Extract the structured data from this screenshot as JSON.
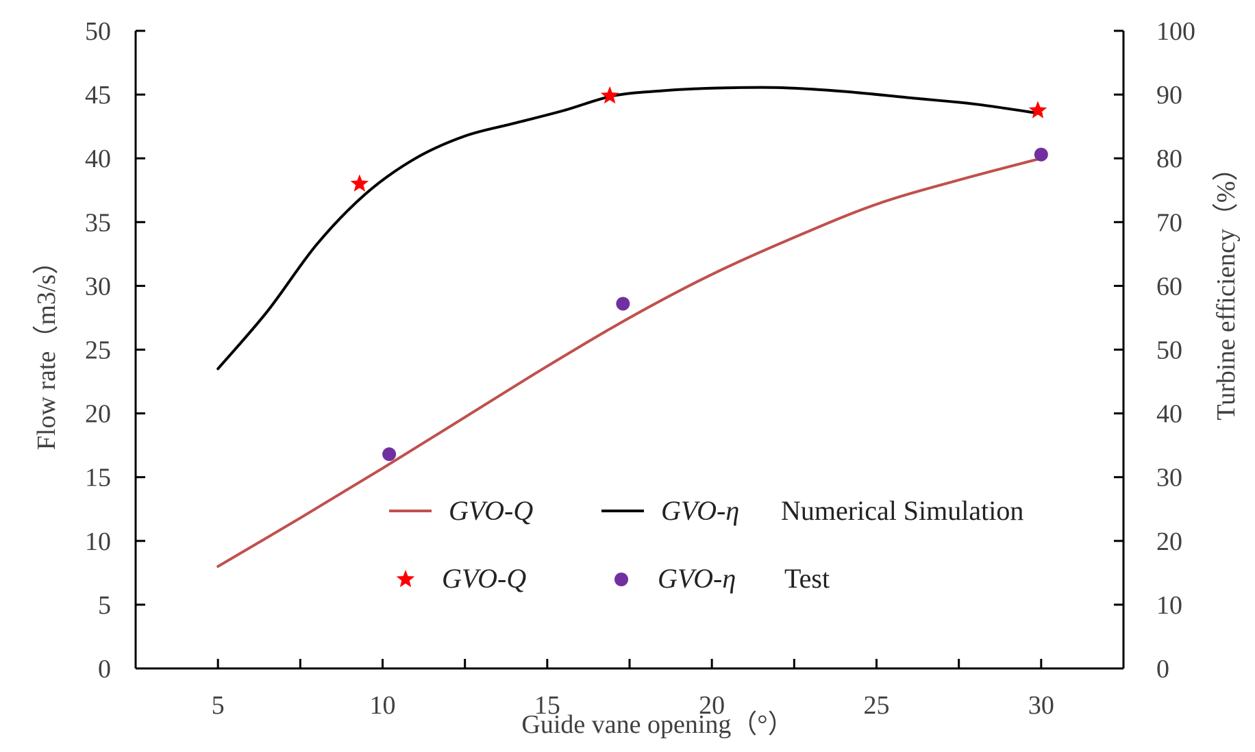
{
  "chart_data": {
    "type": "line",
    "title": "",
    "xlabel": "Guide vane opening（°）",
    "ylabel_left": "Flow rate（m3/s）",
    "ylabel_right": "Turbine efficiency（%）",
    "xlim": [
      2.5,
      32.5
    ],
    "ylim_left": [
      0,
      50
    ],
    "ylim_right": [
      0,
      100
    ],
    "x_ticks": [
      5,
      10,
      15,
      20,
      25,
      30
    ],
    "y_ticks_left": [
      0,
      5,
      10,
      15,
      20,
      25,
      30,
      35,
      40,
      45,
      50
    ],
    "y_ticks_right": [
      0,
      10,
      20,
      30,
      40,
      50,
      60,
      70,
      80,
      90,
      100
    ],
    "grid": false,
    "series": [
      {
        "name": "GVO-Q Numerical Simulation",
        "kind": "line",
        "axis": "left",
        "color": "#c0504d",
        "x": [
          5,
          7.5,
          10,
          12.5,
          15,
          17.5,
          20,
          22.5,
          25,
          27.5,
          30
        ],
        "values": [
          8.0,
          11.8,
          15.7,
          19.7,
          23.7,
          27.5,
          30.9,
          33.8,
          36.4,
          38.3,
          40.0
        ]
      },
      {
        "name": "GVO-η Numerical Simulation",
        "kind": "line",
        "axis": "right",
        "color": "#000000",
        "x": [
          5,
          6.5,
          8,
          9.5,
          11,
          12.5,
          14,
          15.5,
          17,
          18.5,
          20,
          22,
          24,
          26,
          28,
          30
        ],
        "values": [
          47.0,
          56.0,
          66.5,
          74.5,
          80.0,
          83.5,
          85.5,
          87.5,
          89.8,
          90.6,
          91.0,
          91.1,
          90.5,
          89.5,
          88.5,
          87.0
        ]
      },
      {
        "name": "GVO-Q Test",
        "kind": "scatter",
        "marker": "star",
        "axis": "right",
        "color": "#ff0000",
        "x": [
          9.3,
          16.9,
          29.9
        ],
        "values": [
          76.0,
          89.8,
          87.5
        ]
      },
      {
        "name": "GVO-η Test",
        "kind": "scatter",
        "marker": "circle",
        "axis": "left",
        "color": "#7030a0",
        "x": [
          10.2,
          17.3,
          30.0
        ],
        "values": [
          16.8,
          28.6,
          40.3
        ]
      }
    ],
    "legend": {
      "position": "bottom-right",
      "rows": [
        {
          "entries": [
            {
              "label": "GVO-Q",
              "style": "line",
              "color": "#c0504d"
            },
            {
              "label": "GVO-η",
              "style": "line",
              "color": "#000000"
            }
          ],
          "caption": "Numerical Simulation"
        },
        {
          "entries": [
            {
              "label": "GVO-Q",
              "style": "star",
              "color": "#ff0000"
            },
            {
              "label": "GVO-η",
              "style": "circle",
              "color": "#7030a0"
            }
          ],
          "caption": "Test"
        }
      ]
    }
  }
}
